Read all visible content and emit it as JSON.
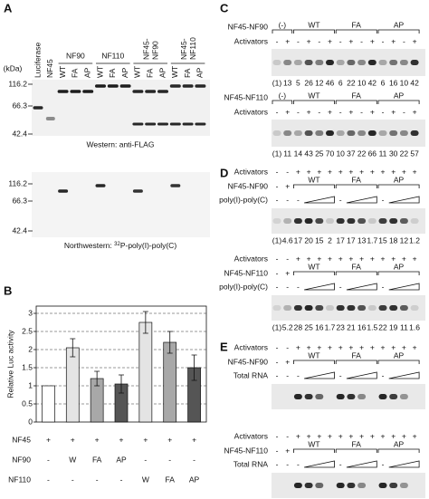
{
  "panel_a": {
    "label": "A",
    "kda": "(kDa)",
    "lanes": [
      "Luciferase",
      "NF45",
      "WT",
      "FA",
      "AP",
      "WT",
      "FA",
      "AP",
      "WT",
      "FA",
      "AP",
      "WT",
      "FA",
      "AP"
    ],
    "groups": [
      [
        "NF90"
      ],
      [
        "NF110"
      ],
      [
        "NF45-",
        "NF90"
      ],
      [
        "NF45-",
        "NF110"
      ]
    ],
    "western_markers": [
      "116.2",
      "66.3",
      "42.4"
    ],
    "western_caption": "Western: anti-FLAG",
    "northwestern_markers": [
      "116.2",
      "66.3",
      "42.4"
    ],
    "northwestern_caption": "Northwestern: ",
    "northwestern_isotope": "32",
    "northwestern_probe": "P-poly(I)-poly(C)"
  },
  "panel_b": {
    "label": "B",
    "chart": {
      "type": "bar",
      "y_label": "Relative Luc activity",
      "values": [
        1,
        2.05,
        1.2,
        1.05,
        2.75,
        2.2,
        1.5
      ],
      "errors": [
        0,
        0.25,
        0.2,
        0.25,
        0.3,
        0.3,
        0.35
      ],
      "colors": [
        "#ffffff",
        "#e4e4e4",
        "#a8a8a8",
        "#555555",
        "#e4e4e4",
        "#a8a8a8",
        "#555555"
      ],
      "ylim": [
        0,
        3.2
      ],
      "yticks": [
        0,
        0.5,
        1,
        1.5,
        2,
        2.5,
        3
      ],
      "grid": true
    },
    "rows": [
      {
        "name": "NF45",
        "cells": [
          "+",
          "+",
          "+",
          "+",
          "+",
          "+",
          "+"
        ]
      },
      {
        "name": "NF90",
        "cells": [
          "-",
          "W",
          "FA",
          "AP",
          "-",
          "-",
          "-"
        ]
      },
      {
        "name": "NF110",
        "cells": [
          "-",
          "-",
          "-",
          "-",
          "W",
          "FA",
          "AP"
        ]
      }
    ]
  },
  "panel_c": {
    "label": "C",
    "blocks": [
      {
        "construct": "NF45-NF90",
        "groups": [
          "(-)",
          "WT",
          "FA",
          "AP"
        ],
        "activators_label": "Activators",
        "activators": [
          "-",
          "+",
          "-",
          "+",
          "-",
          "+",
          "-",
          "+",
          "-",
          "+",
          "-",
          "+",
          "-",
          "+"
        ],
        "quant": [
          "(1)",
          "13",
          "5",
          "26",
          "12",
          "46",
          "6",
          "22",
          "10",
          "42",
          "6",
          "16",
          "10",
          "42"
        ]
      },
      {
        "construct": "NF45-NF110",
        "groups": [
          "(-)",
          "WT",
          "FA",
          "AP"
        ],
        "activators_label": "Activators",
        "activators": [
          "-",
          "+",
          "-",
          "+",
          "-",
          "+",
          "-",
          "+",
          "-",
          "+",
          "-",
          "+",
          "-",
          "+"
        ],
        "quant": [
          "(1)",
          "11",
          "14",
          "43",
          "25",
          "70",
          "10",
          "37",
          "22",
          "66",
          "11",
          "30",
          "22",
          "57"
        ]
      }
    ]
  },
  "panel_d": {
    "label": "D",
    "blocks": [
      {
        "activators_label": "Activators",
        "activators": [
          "-",
          "-",
          "+",
          "+",
          "+",
          "+",
          "+",
          "+",
          "+",
          "+",
          "+",
          "+",
          "+",
          "+"
        ],
        "construct": "NF45-NF90",
        "construct_marks": [
          "-",
          "+"
        ],
        "groups": [
          "WT",
          "FA",
          "AP"
        ],
        "competitor": "poly(I)-poly(C)",
        "competitor_marks": [
          "-",
          "-",
          "-",
          "-",
          "-"
        ],
        "quant": [
          "(1)",
          "4.6",
          "17",
          "20",
          "15",
          "2",
          "17",
          "17",
          "13",
          "1.7",
          "15",
          "18",
          "12",
          "1.2"
        ]
      },
      {
        "activators_label": "Activators",
        "activators": [
          "-",
          "-",
          "+",
          "+",
          "+",
          "+",
          "+",
          "+",
          "+",
          "+",
          "+",
          "+",
          "+",
          "+"
        ],
        "construct": "NF45-NF110",
        "construct_marks": [
          "-",
          "+"
        ],
        "groups": [
          "WT",
          "FA",
          "AP"
        ],
        "competitor": "poly(I)-poly(C)",
        "competitor_marks": [
          "-",
          "-",
          "-",
          "-",
          "-"
        ],
        "quant": [
          "(1)",
          "5.2",
          "28",
          "25",
          "16",
          "1.7",
          "23",
          "21",
          "16",
          "1.5",
          "22",
          "19",
          "11",
          "1.6"
        ]
      }
    ]
  },
  "panel_e": {
    "label": "E",
    "blocks": [
      {
        "activators_label": "Activators",
        "activators": [
          "-",
          "-",
          "+",
          "+",
          "+",
          "+",
          "+",
          "+",
          "+",
          "+",
          "+",
          "+",
          "+",
          "+"
        ],
        "construct": "NF45-NF90",
        "construct_marks": [
          "-",
          "+"
        ],
        "groups": [
          "WT",
          "FA",
          "AP"
        ],
        "competitor": "Total RNA",
        "competitor_marks": [
          "-",
          "-",
          "-",
          "-",
          "-"
        ]
      },
      {
        "activators_label": "Activators",
        "activators": [
          "-",
          "-",
          "+",
          "+",
          "+",
          "+",
          "+",
          "+",
          "+",
          "+",
          "+",
          "+",
          "+",
          "+"
        ],
        "construct": "NF45-NF110",
        "construct_marks": [
          "-",
          "+"
        ],
        "groups": [
          "WT",
          "FA",
          "AP"
        ],
        "competitor": "Total RNA",
        "competitor_marks": [
          "-",
          "-",
          "-",
          "-",
          "-"
        ]
      }
    ]
  }
}
